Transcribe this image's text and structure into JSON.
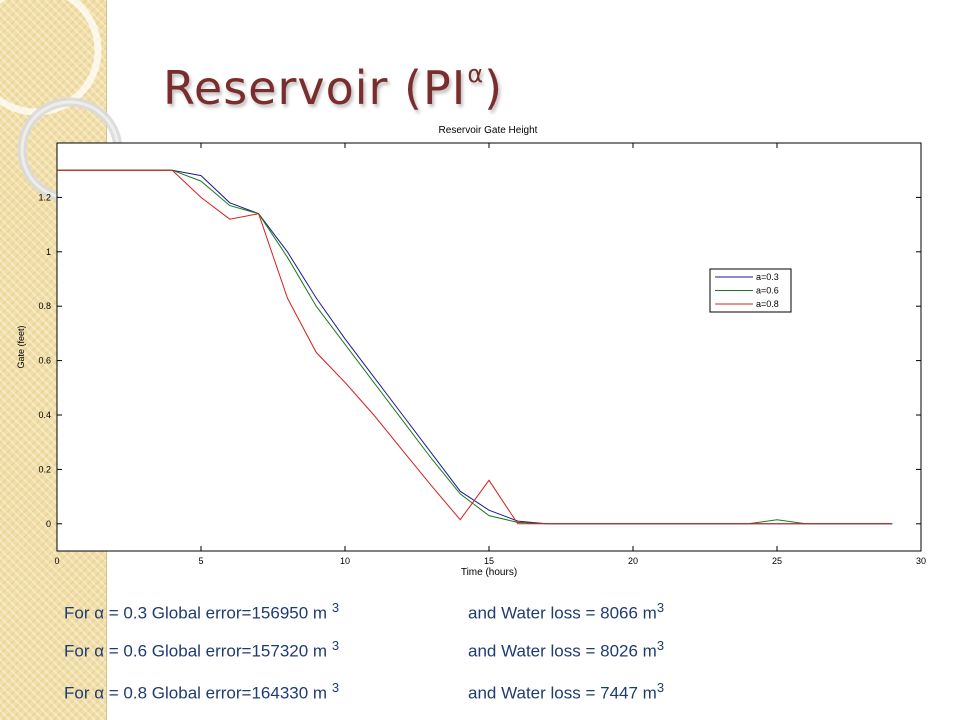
{
  "slide": {
    "title_main": "Reservoir (PI",
    "title_sup": "α",
    "title_close": ")"
  },
  "colors": {
    "title": "#7a2d2d",
    "stats_text": "#1f3b73",
    "sidebar": "#f2dfa8",
    "series_0_3": "#1a1a9a",
    "series_0_6": "#1a7a1a",
    "series_0_8": "#d42020"
  },
  "chart_data": {
    "type": "line",
    "title": "Reservoir Gate Height",
    "xlabel": "Time (hours)",
    "ylabel": "Gate (feet)",
    "xlim": [
      0,
      30
    ],
    "ylim": [
      -0.1,
      1.4
    ],
    "xticks": [
      0,
      5,
      10,
      15,
      20,
      25,
      30
    ],
    "yticks": [
      0,
      0.2,
      0.4,
      0.6,
      0.8,
      1,
      1.2
    ],
    "grid": false,
    "legend_position": "right",
    "series": [
      {
        "name": "a=0.3",
        "color": "#1a1a9a",
        "points": [
          [
            0,
            1.3
          ],
          [
            4,
            1.3
          ],
          [
            5,
            1.28
          ],
          [
            6,
            1.18
          ],
          [
            7,
            1.14
          ],
          [
            8,
            1.0
          ],
          [
            9,
            0.83
          ],
          [
            10,
            0.68
          ],
          [
            11,
            0.54
          ],
          [
            12,
            0.4
          ],
          [
            13,
            0.26
          ],
          [
            14,
            0.12
          ],
          [
            15,
            0.05
          ],
          [
            16,
            0.01
          ],
          [
            17,
            0
          ],
          [
            24,
            0
          ],
          [
            25,
            0
          ],
          [
            29,
            0
          ]
        ]
      },
      {
        "name": "a=0.6",
        "color": "#1a7a1a",
        "points": [
          [
            0,
            1.3
          ],
          [
            4,
            1.3
          ],
          [
            5,
            1.26
          ],
          [
            6,
            1.17
          ],
          [
            7,
            1.14
          ],
          [
            8,
            0.98
          ],
          [
            9,
            0.8
          ],
          [
            10,
            0.66
          ],
          [
            11,
            0.52
          ],
          [
            12,
            0.38
          ],
          [
            13,
            0.24
          ],
          [
            14,
            0.11
          ],
          [
            15,
            0.03
          ],
          [
            16,
            0.005
          ],
          [
            17,
            0
          ],
          [
            24,
            0
          ],
          [
            25,
            0.015
          ],
          [
            26,
            0
          ],
          [
            29,
            0
          ]
        ]
      },
      {
        "name": "a=0.8",
        "color": "#d42020",
        "points": [
          [
            0,
            1.3
          ],
          [
            4,
            1.3
          ],
          [
            5,
            1.2
          ],
          [
            6,
            1.12
          ],
          [
            7,
            1.14
          ],
          [
            8,
            0.83
          ],
          [
            9,
            0.63
          ],
          [
            10,
            0.52
          ],
          [
            11,
            0.4
          ],
          [
            12,
            0.27
          ],
          [
            13,
            0.14
          ],
          [
            14,
            0.015
          ],
          [
            15,
            0.16
          ],
          [
            16,
            0
          ],
          [
            17,
            0
          ],
          [
            29,
            0
          ]
        ]
      }
    ]
  },
  "stats": [
    {
      "prefix": "For α = 0.3 Global error=156950 m ",
      "error_unit_sup": "3",
      "water": "and Water loss = 8066 m",
      "water_unit_sup": "3"
    },
    {
      "prefix": "For α = 0.6 Global error=157320 m ",
      "error_unit_sup": "3",
      "water": "and Water loss = 8026 m",
      "water_unit_sup": "3"
    },
    {
      "prefix": "For α = 0.8 Global error=164330 m ",
      "error_unit_sup": "3",
      "water": "and Water loss = 7447 m",
      "water_unit_sup": "3"
    }
  ]
}
